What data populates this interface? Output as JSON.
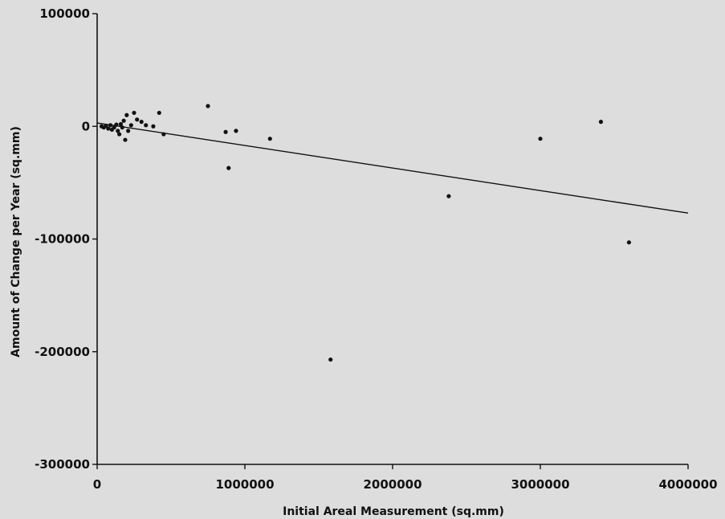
{
  "chart_data": {
    "type": "scatter",
    "xlabel": "Initial Areal Measurement (sq.mm)",
    "ylabel": "Amount of Change per Year (sq.mm)",
    "xlim": [
      0,
      4000000
    ],
    "ylim": [
      -300000,
      100000
    ],
    "x_ticks": [
      {
        "value": 0,
        "label": "0"
      },
      {
        "value": 1000000,
        "label": "1000000"
      },
      {
        "value": 2000000,
        "label": "2000000"
      },
      {
        "value": 3000000,
        "label": "3000000"
      },
      {
        "value": 4000000,
        "label": "4000000"
      }
    ],
    "y_ticks": [
      {
        "value": 100000,
        "label": "100000"
      },
      {
        "value": 0,
        "label": "0"
      },
      {
        "value": -100000,
        "label": "-100000"
      },
      {
        "value": -200000,
        "label": "-200000"
      },
      {
        "value": -300000,
        "label": "-300000"
      }
    ],
    "grid": false,
    "points": [
      {
        "x": 30000,
        "y": 0
      },
      {
        "x": 45000,
        "y": -1000
      },
      {
        "x": 60000,
        "y": 500
      },
      {
        "x": 75000,
        "y": -2000
      },
      {
        "x": 90000,
        "y": 1000
      },
      {
        "x": 100000,
        "y": -3000
      },
      {
        "x": 115000,
        "y": -1000
      },
      {
        "x": 130000,
        "y": 1500
      },
      {
        "x": 140000,
        "y": -4000
      },
      {
        "x": 150000,
        "y": -7000
      },
      {
        "x": 160000,
        "y": 2000
      },
      {
        "x": 170000,
        "y": -1000
      },
      {
        "x": 180000,
        "y": 5000
      },
      {
        "x": 190000,
        "y": -12000
      },
      {
        "x": 200000,
        "y": 10000
      },
      {
        "x": 210000,
        "y": -4000
      },
      {
        "x": 230000,
        "y": 1000
      },
      {
        "x": 250000,
        "y": 12000
      },
      {
        "x": 270000,
        "y": 6000
      },
      {
        "x": 300000,
        "y": 4000
      },
      {
        "x": 330000,
        "y": 1000
      },
      {
        "x": 380000,
        "y": 0
      },
      {
        "x": 420000,
        "y": 12000
      },
      {
        "x": 450000,
        "y": -7000
      },
      {
        "x": 750000,
        "y": 18000
      },
      {
        "x": 870000,
        "y": -5000
      },
      {
        "x": 890000,
        "y": -37000
      },
      {
        "x": 940000,
        "y": -4000
      },
      {
        "x": 1170000,
        "y": -11000
      },
      {
        "x": 1580000,
        "y": -207000
      },
      {
        "x": 2380000,
        "y": -62000
      },
      {
        "x": 3000000,
        "y": -11000
      },
      {
        "x": 3410000,
        "y": 4000
      },
      {
        "x": 3600000,
        "y": -103000
      }
    ],
    "fit_line": {
      "x": [
        0,
        4000000
      ],
      "y": [
        3000,
        -77000
      ]
    }
  }
}
